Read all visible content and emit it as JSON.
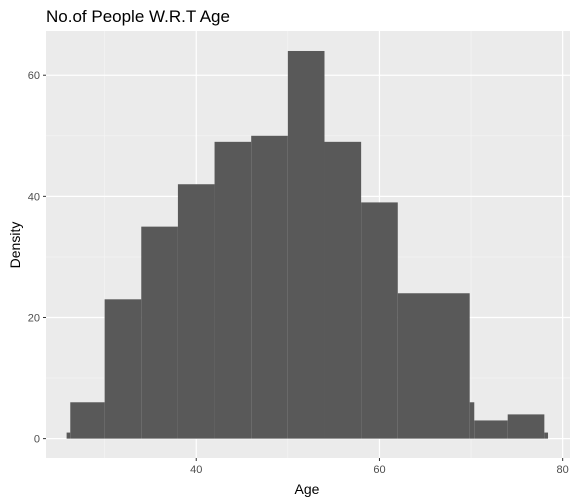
{
  "chart_data": {
    "type": "bar",
    "title": "No.of People W.R.T Age",
    "xlabel": "Age",
    "ylabel": "Density",
    "xlim": [
      23.6,
      80.8
    ],
    "ylim": [
      -3.2,
      67.3
    ],
    "x_ticks": [
      40,
      60,
      80
    ],
    "y_ticks": [
      0,
      20,
      40,
      60
    ],
    "grid": true,
    "legend": "none",
    "colors": {
      "bar": "#595959",
      "panel": "#ebebeb",
      "grid_major": "#ffffff"
    },
    "bins": [
      {
        "start": 25.85,
        "end": 26.25,
        "value": 1
      },
      {
        "start": 26.25,
        "end": 30.0,
        "value": 6
      },
      {
        "start": 30.0,
        "end": 34.0,
        "value": 23
      },
      {
        "start": 34.0,
        "end": 38.0,
        "value": 35
      },
      {
        "start": 38.0,
        "end": 42.0,
        "value": 42
      },
      {
        "start": 42.0,
        "end": 46.0,
        "value": 49
      },
      {
        "start": 46.0,
        "end": 50.0,
        "value": 50
      },
      {
        "start": 50.0,
        "end": 54.0,
        "value": 64
      },
      {
        "start": 54.0,
        "end": 58.0,
        "value": 49
      },
      {
        "start": 58.0,
        "end": 62.0,
        "value": 39
      },
      {
        "start": 62.0,
        "end": 69.85,
        "value": 24
      },
      {
        "start": 69.85,
        "end": 70.35,
        "value": 6
      },
      {
        "start": 70.35,
        "end": 74.0,
        "value": 3
      },
      {
        "start": 74.0,
        "end": 78.0,
        "value": 4
      },
      {
        "start": 78.0,
        "end": 78.4,
        "value": 1
      }
    ]
  }
}
